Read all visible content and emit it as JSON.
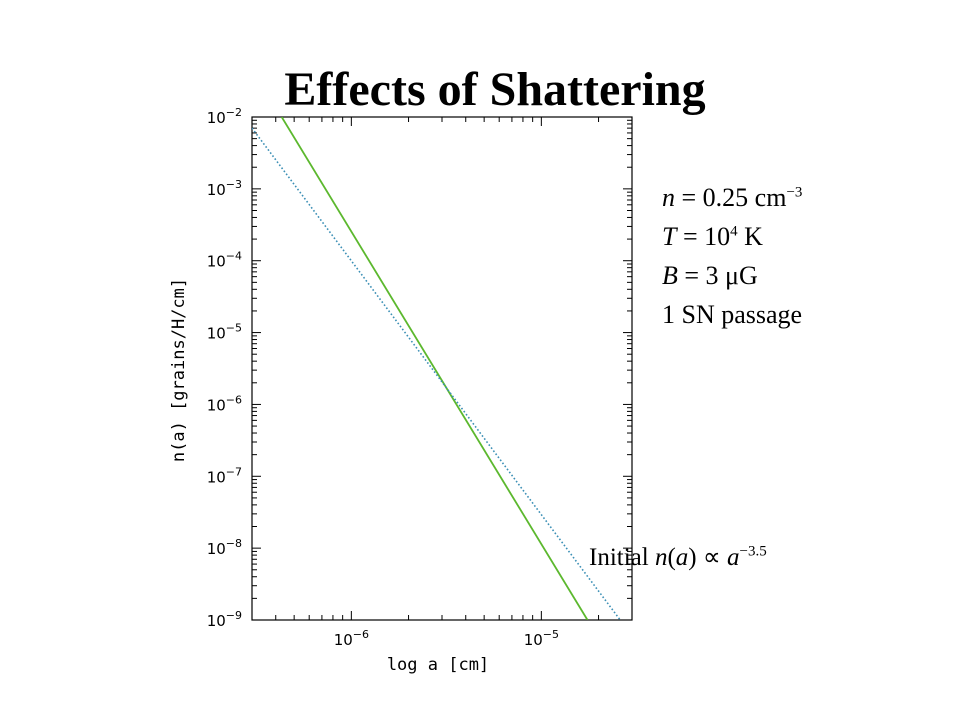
{
  "slide": {
    "title": "Effects of Shattering"
  },
  "params": {
    "n_sym": "n",
    "n_val": " = 0.25 cm",
    "n_exp": "−3",
    "T_sym": "T",
    "T_val": " = 10",
    "T_exp": "4",
    "T_unit": " K",
    "B_sym": "B",
    "B_val": " = 3 μG",
    "sn": "1 SN passage"
  },
  "annotation": {
    "prefix": "Initial ",
    "n": "n",
    "open": "(",
    "a": "a",
    "close": ")",
    "propto": " ∝ ",
    "a2": "a",
    "exp": "−3.5"
  },
  "chart_data": {
    "type": "line",
    "xscale": "log",
    "yscale": "log",
    "xlabel": "log a [cm]",
    "ylabel": "n(a) [grains/H/cm]",
    "xlim": [
      3e-07,
      3e-05
    ],
    "ylim": [
      1e-09,
      0.01
    ],
    "x_ticks": [
      {
        "value": 1e-06,
        "base": "10",
        "exp": "−6"
      },
      {
        "value": 1e-05,
        "base": "10",
        "exp": "−5"
      }
    ],
    "y_ticks": [
      {
        "value": 0.01,
        "base": "10",
        "exp": "−2"
      },
      {
        "value": 0.001,
        "base": "10",
        "exp": "−3"
      },
      {
        "value": 0.0001,
        "base": "10",
        "exp": "−4"
      },
      {
        "value": 1e-05,
        "base": "10",
        "exp": "−5"
      },
      {
        "value": 1e-06,
        "base": "10",
        "exp": "−6"
      },
      {
        "value": 1e-07,
        "base": "10",
        "exp": "−7"
      },
      {
        "value": 1e-08,
        "base": "10",
        "exp": "−8"
      },
      {
        "value": 1e-09,
        "base": "10",
        "exp": "−9"
      }
    ],
    "series": [
      {
        "style": "solid",
        "color": "#5cb82e",
        "x": [
          4.3e-07,
          1.75e-05
        ],
        "y": [
          0.01,
          1e-09
        ]
      },
      {
        "style": "dotted",
        "color": "#3b8fb5",
        "x": [
          3e-07,
          2.6e-05
        ],
        "y": [
          0.007,
          1e-09
        ]
      }
    ]
  }
}
